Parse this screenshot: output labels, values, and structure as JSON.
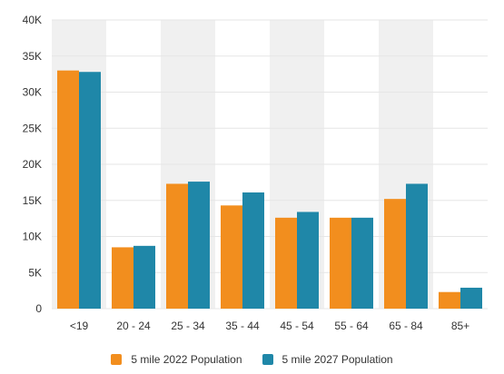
{
  "chart_data": {
    "type": "bar",
    "categories": [
      "<19",
      "20 - 24",
      "25 - 34",
      "35 - 44",
      "45 - 54",
      "55 - 64",
      "65 - 84",
      "85+"
    ],
    "series": [
      {
        "name": "5 mile 2022 Population",
        "color": "#F28E1E",
        "values": [
          33000,
          8500,
          17300,
          14300,
          12600,
          12600,
          15200,
          2300
        ]
      },
      {
        "name": "5 mile 2027 Population",
        "color": "#1F87A8",
        "values": [
          32800,
          8700,
          17600,
          16100,
          13400,
          12600,
          17300,
          2900
        ]
      }
    ],
    "y_ticks": [
      "0",
      "5K",
      "10K",
      "15K",
      "20K",
      "25K",
      "30K",
      "35K",
      "40K"
    ],
    "ylim": [
      0,
      40000
    ],
    "grid": true,
    "alternating_bands": true,
    "band_color": "#F0F0F0",
    "legend_position": "bottom"
  }
}
